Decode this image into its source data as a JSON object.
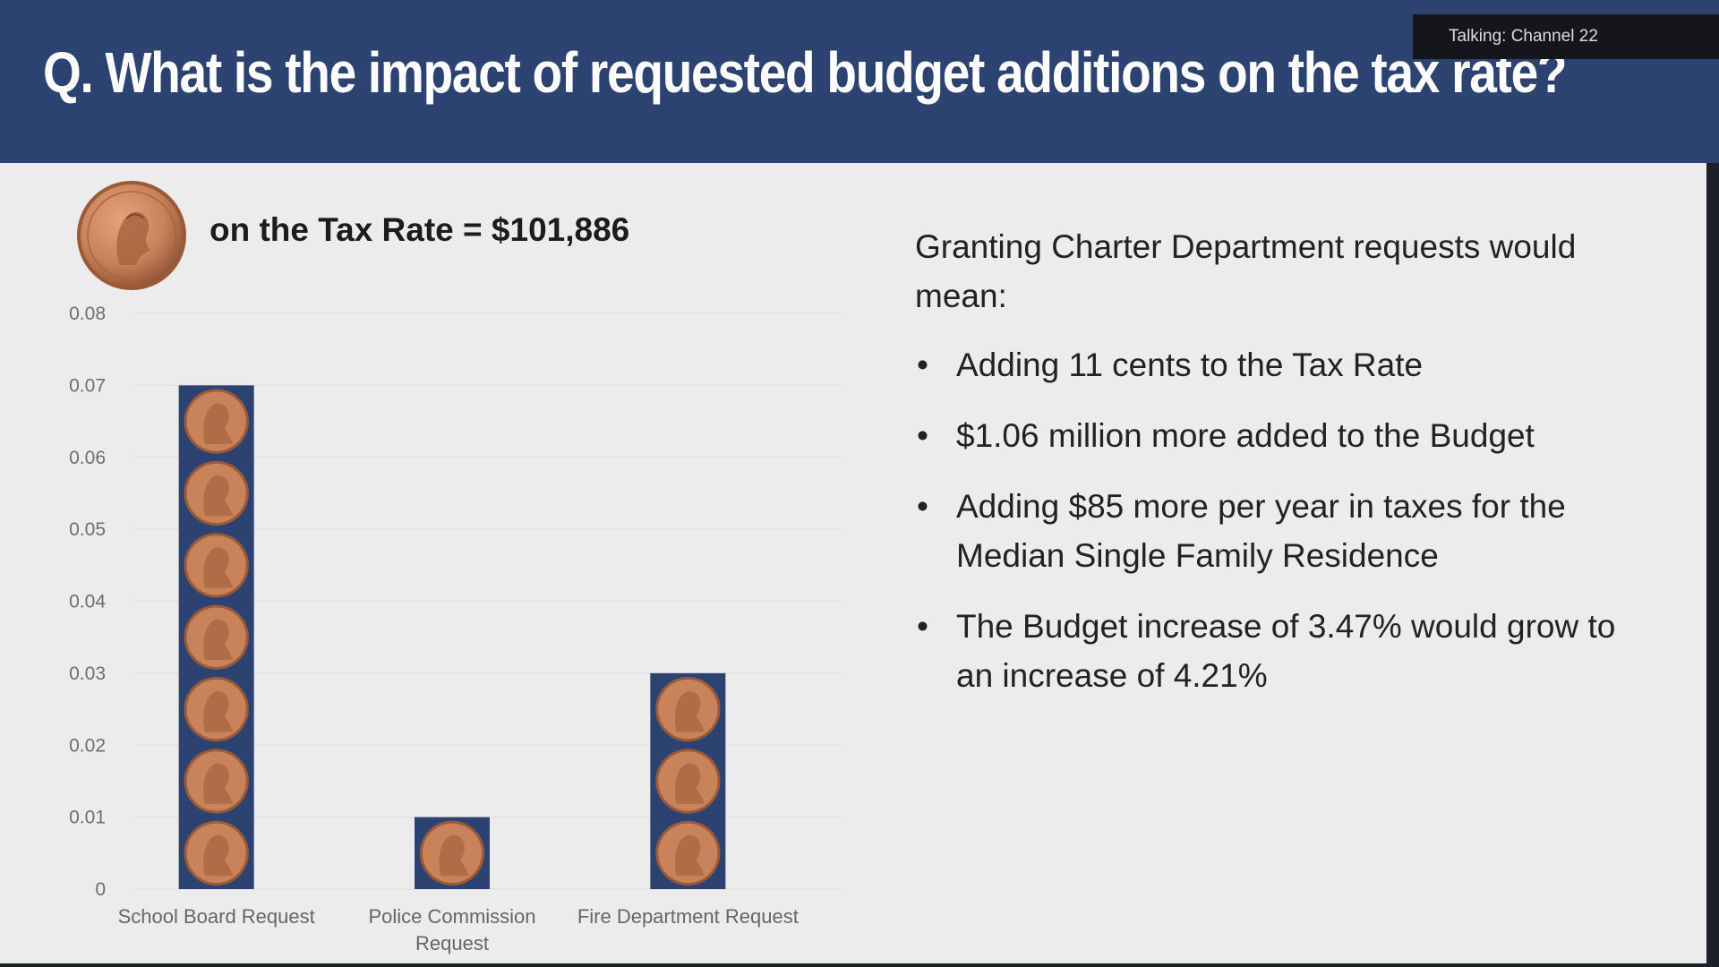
{
  "header": {
    "title": "Q.  What is the impact of requested budget additions on the tax rate?",
    "channel_badge": "Talking: Channel 22"
  },
  "penny_caption": "on the Tax Rate = $101,886",
  "info": {
    "intro": "Granting Charter Department requests would mean:",
    "bullet_glyph": "•",
    "bullets": [
      "Adding 11 cents to the Tax Rate",
      "$1.06 million more added to the Budget",
      "Adding $85 more per year in taxes for the Median Single Family Residence",
      "The Budget increase of 3.47% would grow to an increase of 4.21%"
    ]
  },
  "colors": {
    "header_bg": "#2c4372",
    "bar_fill": "#2c4372",
    "coin": "#c9835a",
    "coin_dark": "#9a5a38",
    "slide_bg": "#ececec"
  },
  "chart_data": {
    "type": "bar",
    "categories": [
      "School Board Request",
      "Police Commission Request",
      "Fire Department Request"
    ],
    "category_lines": [
      [
        "School Board Request"
      ],
      [
        "Police Commission",
        "Request"
      ],
      [
        "Fire Department Request"
      ]
    ],
    "values": [
      0.07,
      0.01,
      0.03
    ],
    "ylim": [
      0,
      0.08
    ],
    "yticks": [
      "0",
      "0.01",
      "0.02",
      "0.03",
      "0.04",
      "0.05",
      "0.06",
      "0.07",
      "0.08"
    ],
    "ytick_values": [
      0,
      0.01,
      0.02,
      0.03,
      0.04,
      0.05,
      0.06,
      0.07,
      0.08
    ],
    "bar_style": "stacked penny icons, one per 0.01",
    "grid": true,
    "legend": "none"
  }
}
